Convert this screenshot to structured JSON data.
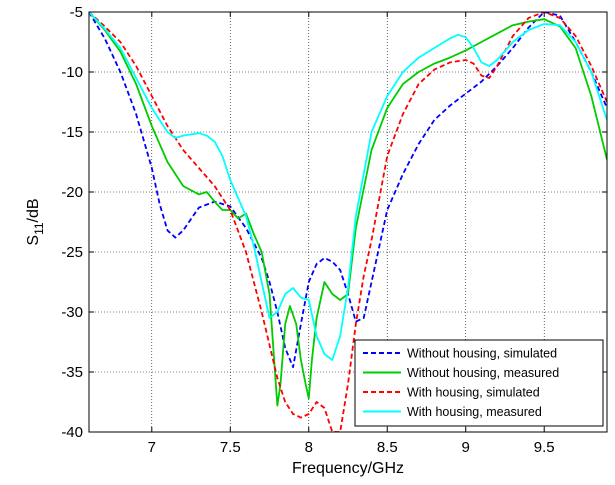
{
  "chart_data": {
    "type": "line",
    "xlabel": "Frequency/GHz",
    "ylabel": {
      "base": "S",
      "sub": "11",
      "rest": "/dB"
    },
    "xlim": [
      6.6,
      9.9
    ],
    "ylim": [
      -40,
      -5
    ],
    "xticks": [
      7,
      7.5,
      8,
      8.5,
      9,
      9.5
    ],
    "yticks": [
      -5,
      -10,
      -15,
      -20,
      -25,
      -30,
      -35,
      -40
    ],
    "xtick_labels": [
      "7",
      "7.5",
      "8",
      "8.5",
      "9",
      "9.5"
    ],
    "ytick_labels": [
      "-5",
      "-10",
      "-15",
      "-20",
      "-25",
      "-30",
      "-35",
      "-40"
    ],
    "grid": true,
    "legend_position": "bottom-right",
    "series": [
      {
        "name": "Without housing, simulated",
        "color": "#0000ff",
        "style": "dashed",
        "x": [
          6.6,
          6.7,
          6.8,
          6.9,
          7.0,
          7.05,
          7.1,
          7.15,
          7.2,
          7.3,
          7.4,
          7.5,
          7.6,
          7.7,
          7.75,
          7.8,
          7.85,
          7.9,
          7.95,
          8.0,
          8.05,
          8.1,
          8.15,
          8.2,
          8.25,
          8.3,
          8.35,
          8.4,
          8.5,
          8.6,
          8.7,
          8.8,
          8.9,
          9.0,
          9.1,
          9.2,
          9.3,
          9.4,
          9.5,
          9.6,
          9.7,
          9.8,
          9.9
        ],
        "y": [
          -5,
          -7.2,
          -10,
          -13.5,
          -18,
          -21,
          -23.2,
          -23.8,
          -23.2,
          -21.3,
          -20.8,
          -21.2,
          -23,
          -25.5,
          -27.5,
          -30,
          -33,
          -34.6,
          -31,
          -27.5,
          -26,
          -25.5,
          -25.8,
          -26.5,
          -28.5,
          -30.8,
          -30.5,
          -27.5,
          -21.5,
          -18.5,
          -16,
          -14,
          -12.8,
          -11.8,
          -10.8,
          -9.5,
          -8,
          -6.3,
          -5,
          -5.3,
          -7.5,
          -10,
          -13
        ]
      },
      {
        "name": "Without housing, measured",
        "color": "#00cc00",
        "style": "solid",
        "x": [
          6.6,
          6.7,
          6.8,
          6.9,
          7.0,
          7.1,
          7.2,
          7.3,
          7.35,
          7.4,
          7.45,
          7.5,
          7.55,
          7.6,
          7.65,
          7.7,
          7.75,
          7.8,
          7.82,
          7.85,
          7.88,
          7.92,
          7.95,
          7.98,
          8.0,
          8.02,
          8.05,
          8.1,
          8.15,
          8.2,
          8.25,
          8.3,
          8.4,
          8.5,
          8.6,
          8.7,
          8.8,
          8.9,
          9.0,
          9.1,
          9.2,
          9.3,
          9.4,
          9.5,
          9.6,
          9.7,
          9.8,
          9.9
        ],
        "y": [
          -5,
          -6.5,
          -8.3,
          -11,
          -14.5,
          -17.5,
          -19.5,
          -20.2,
          -20,
          -20.8,
          -21.5,
          -21.5,
          -22.2,
          -21.8,
          -23.5,
          -25,
          -28.5,
          -37.8,
          -36,
          -31,
          -29.5,
          -31,
          -34,
          -36,
          -37.2,
          -34,
          -30.5,
          -27.5,
          -28.5,
          -29,
          -28.5,
          -23,
          -16.5,
          -13,
          -11,
          -10,
          -9.3,
          -8.8,
          -8.2,
          -7.5,
          -6.8,
          -6.1,
          -5.8,
          -5.6,
          -6.2,
          -8,
          -12,
          -17.3
        ]
      },
      {
        "name": "With housing, simulated",
        "color": "#ff0000",
        "style": "dashed",
        "x": [
          6.6,
          6.7,
          6.8,
          6.9,
          7.0,
          7.1,
          7.2,
          7.3,
          7.4,
          7.5,
          7.6,
          7.7,
          7.8,
          7.85,
          7.9,
          7.95,
          8.0,
          8.05,
          8.1,
          8.15,
          8.2,
          8.25,
          8.3,
          8.35,
          8.4,
          8.5,
          8.6,
          8.7,
          8.8,
          8.9,
          9.0,
          9.05,
          9.1,
          9.15,
          9.2,
          9.3,
          9.4,
          9.5,
          9.6,
          9.7,
          9.8,
          9.9
        ],
        "y": [
          -5,
          -6.2,
          -7.5,
          -9.5,
          -12,
          -14.5,
          -16.5,
          -18,
          -19.5,
          -21.5,
          -25,
          -30,
          -35.5,
          -37.5,
          -38.5,
          -38.8,
          -38.5,
          -37.5,
          -38,
          -40,
          -40,
          -36,
          -31,
          -27,
          -24,
          -17,
          -13.5,
          -11,
          -9.8,
          -9.2,
          -9,
          -9.3,
          -10.3,
          -10.5,
          -9.5,
          -7,
          -5.5,
          -5,
          -5.5,
          -7,
          -9.5,
          -12.5
        ]
      },
      {
        "name": "With housing, measured",
        "color": "#00ffff",
        "style": "solid",
        "x": [
          6.6,
          6.7,
          6.8,
          6.9,
          7.0,
          7.1,
          7.15,
          7.2,
          7.25,
          7.3,
          7.35,
          7.4,
          7.45,
          7.5,
          7.55,
          7.6,
          7.65,
          7.7,
          7.75,
          7.8,
          7.85,
          7.9,
          7.95,
          8.0,
          8.05,
          8.1,
          8.15,
          8.2,
          8.25,
          8.3,
          8.4,
          8.5,
          8.6,
          8.7,
          8.8,
          8.9,
          8.95,
          9.0,
          9.05,
          9.1,
          9.15,
          9.2,
          9.3,
          9.4,
          9.5,
          9.6,
          9.7,
          9.8,
          9.9
        ],
        "y": [
          -5,
          -6.4,
          -8,
          -10.5,
          -13,
          -15,
          -15.5,
          -15.3,
          -15.2,
          -15.1,
          -15.3,
          -15.8,
          -17,
          -19,
          -20.5,
          -22,
          -24.5,
          -27.5,
          -30.5,
          -30,
          -28.5,
          -28,
          -28.8,
          -29,
          -32,
          -33.5,
          -34,
          -32,
          -28,
          -22,
          -15,
          -12,
          -10,
          -8.8,
          -8,
          -7.2,
          -6.9,
          -7.1,
          -8,
          -9.2,
          -9.5,
          -9,
          -7.5,
          -6.5,
          -6,
          -6.1,
          -7.5,
          -10,
          -14
        ]
      }
    ]
  }
}
